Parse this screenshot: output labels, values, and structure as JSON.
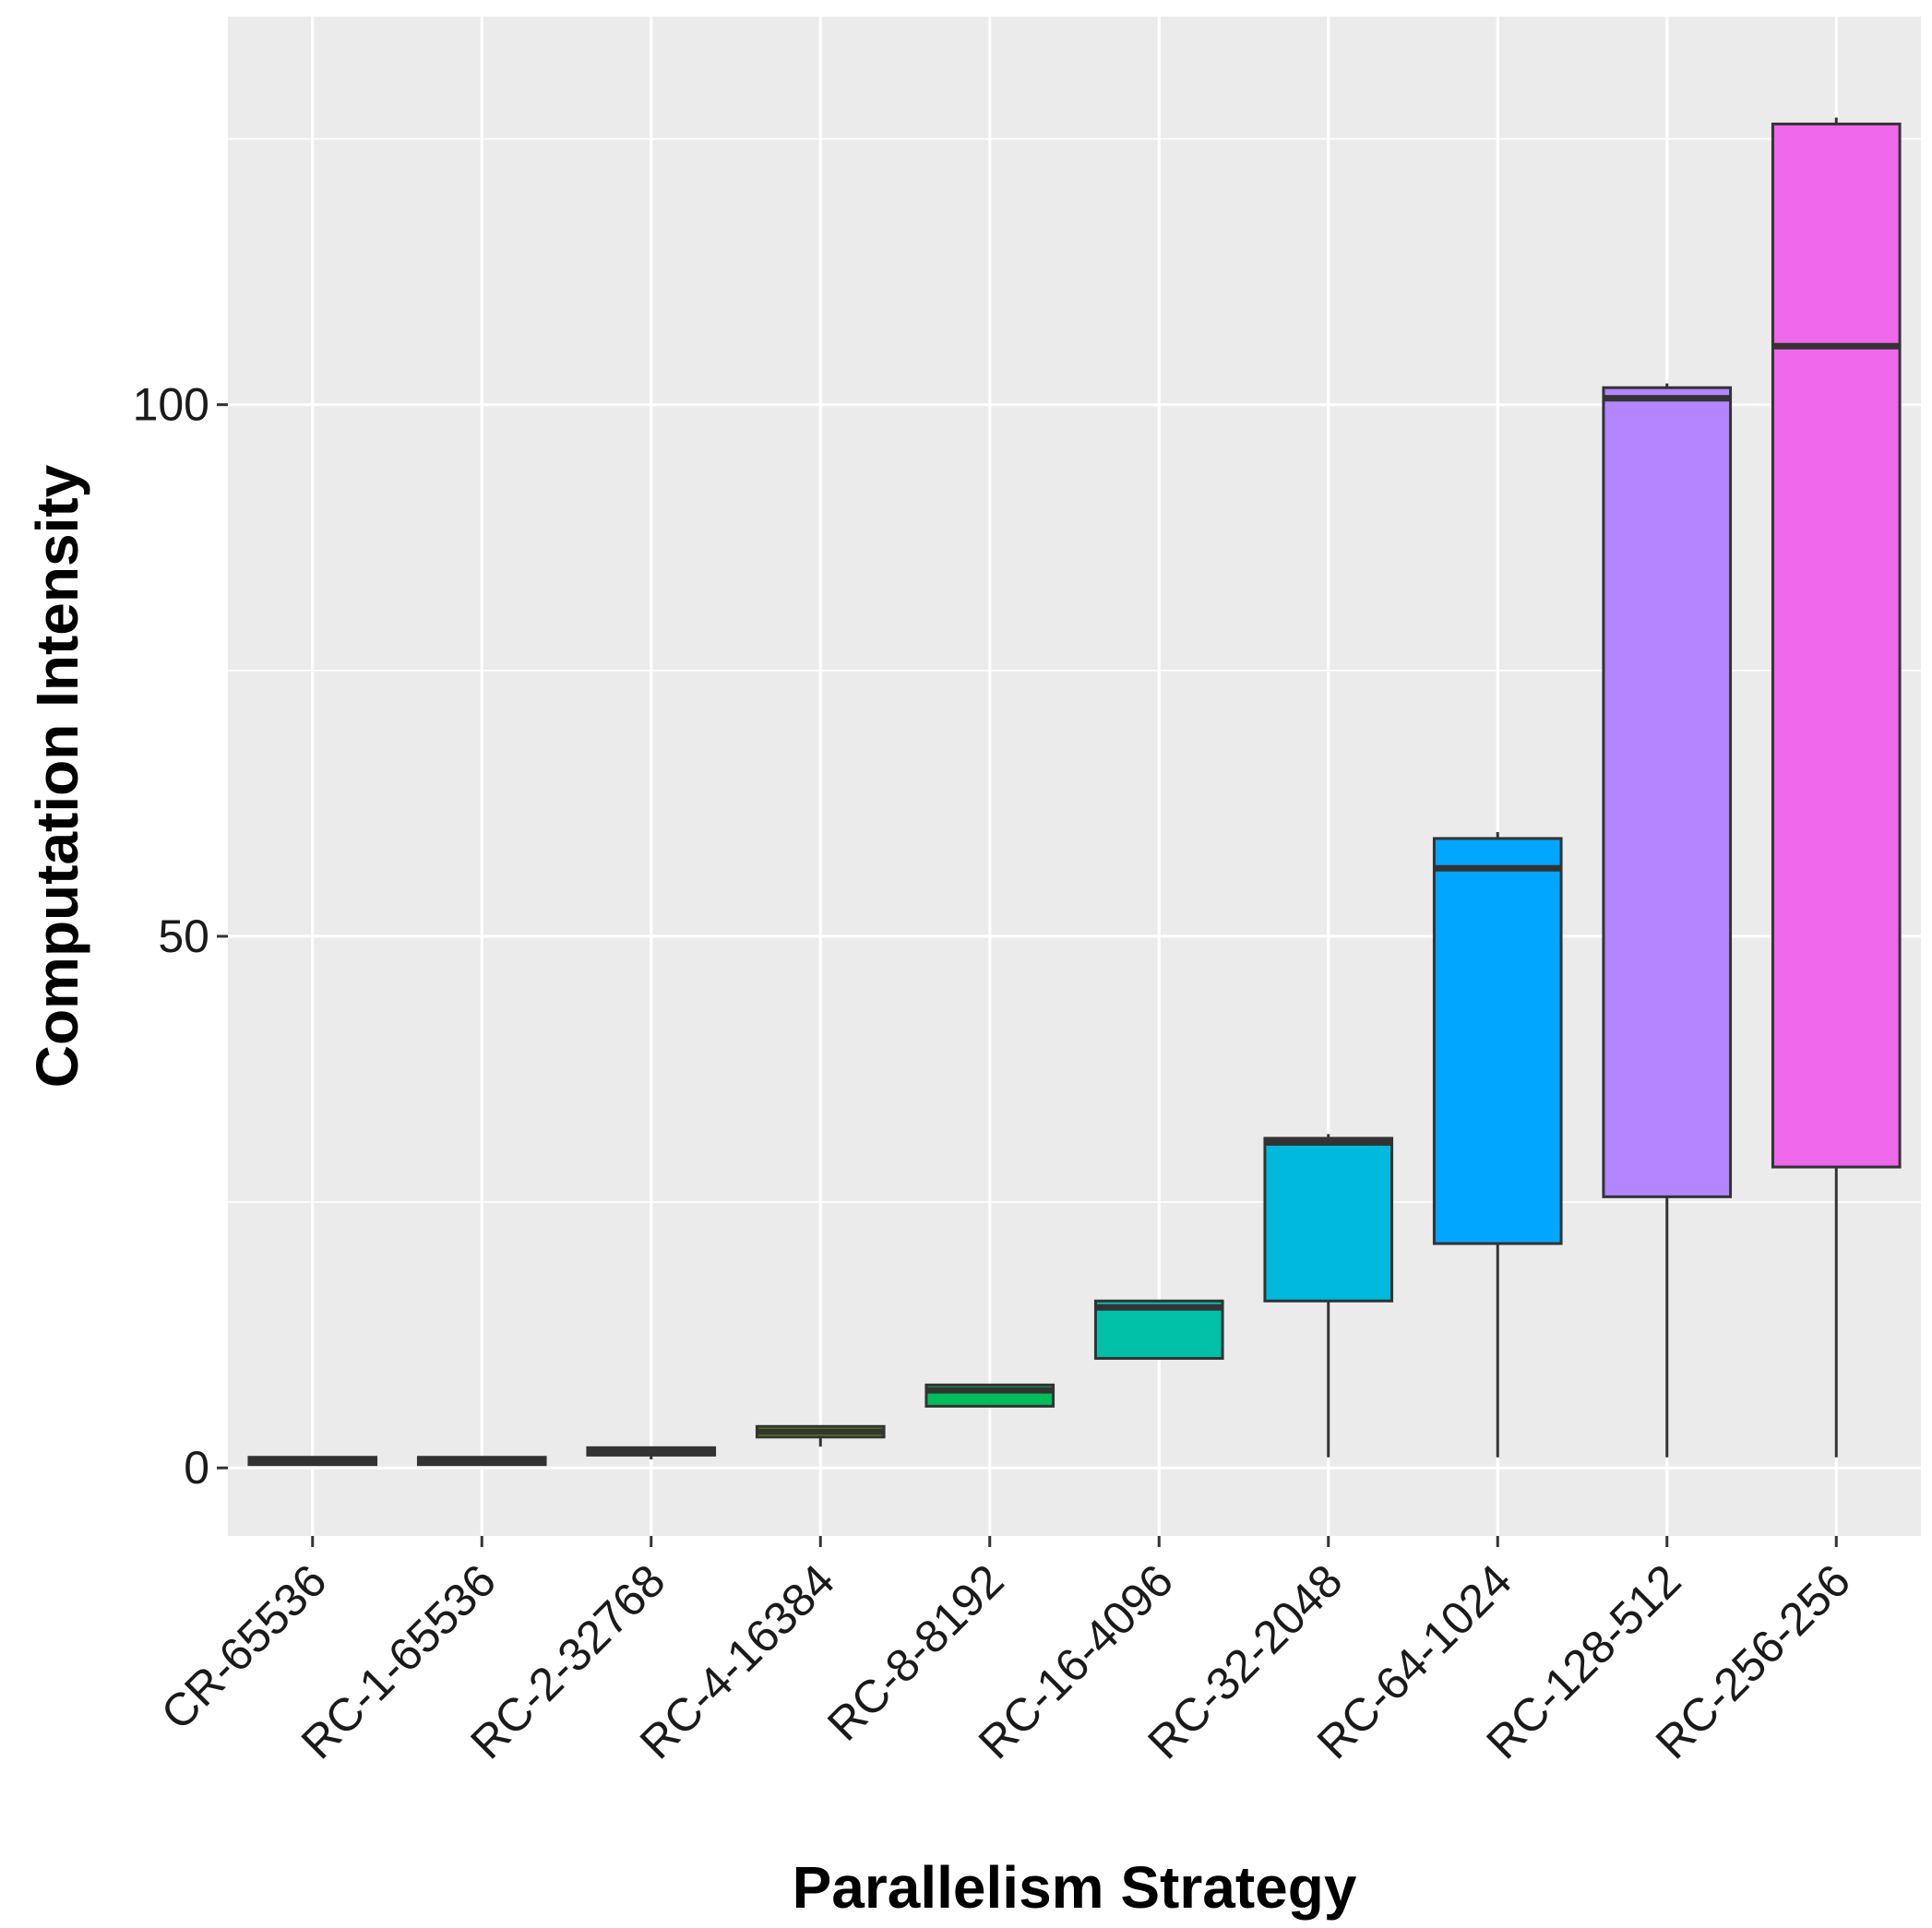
{
  "chart_data": {
    "type": "boxplot",
    "title": "",
    "xlabel": "Parallelism Strategy",
    "ylabel": "Computation Intensity",
    "ylim": [
      -6.4,
      136.5
    ],
    "y_ticks": [
      0,
      50,
      100
    ],
    "y_tick_labels": [
      "0",
      "50",
      "100"
    ],
    "grid": true,
    "legend": "none",
    "colors": {
      "panel_background": "#EBEBEB",
      "grid_line": "#FFFFFF",
      "box_outline": "#333333",
      "median_line": "#333333"
    },
    "categories": [
      "CR-65536",
      "RC-1-65536",
      "RC-2-32768",
      "RC-4-16384",
      "RC-8-8192",
      "RC-16-4096",
      "RC-32-2048",
      "RC-64-1024",
      "RC-128-512",
      "RC-256-256"
    ],
    "boxes": [
      {
        "label": "CR-65536",
        "min": 0.5,
        "q1": 0.5,
        "median": 0.7,
        "q3": 1.0,
        "max": 1.0,
        "color": "#F8766D"
      },
      {
        "label": "RC-1-65536",
        "min": 0.5,
        "q1": 0.5,
        "median": 0.7,
        "q3": 1.0,
        "max": 1.0,
        "color": "#DB8E00"
      },
      {
        "label": "RC-2-32768",
        "min": 0.8,
        "q1": 1.2,
        "median": 1.5,
        "q3": 1.9,
        "max": 2.0,
        "color": "#AEA200"
      },
      {
        "label": "RC-4-16384",
        "min": 2.0,
        "q1": 2.9,
        "median": 3.4,
        "q3": 3.9,
        "max": 4.0,
        "color": "#64B200"
      },
      {
        "label": "RC-8-8192",
        "min": 5.8,
        "q1": 5.8,
        "median": 7.3,
        "q3": 7.8,
        "max": 7.8,
        "color": "#00BD5C"
      },
      {
        "label": "RC-16-4096",
        "min": 10.3,
        "q1": 10.3,
        "median": 15.1,
        "q3": 15.7,
        "max": 15.7,
        "color": "#00C1A7"
      },
      {
        "label": "RC-32-2048",
        "min": 1.0,
        "q1": 15.7,
        "median": 30.6,
        "q3": 31.0,
        "max": 31.4,
        "color": "#00BADE"
      },
      {
        "label": "RC-64-1024",
        "min": 1.0,
        "q1": 21.1,
        "median": 56.4,
        "q3": 59.2,
        "max": 59.8,
        "color": "#00A6FF"
      },
      {
        "label": "RC-128-512",
        "min": 1.0,
        "q1": 25.5,
        "median": 100.6,
        "q3": 101.6,
        "max": 102.0,
        "color": "#B385FF"
      },
      {
        "label": "RC-256-256",
        "min": 1.0,
        "q1": 28.3,
        "median": 105.5,
        "q3": 126.4,
        "max": 127.0,
        "color": "#EF67EB"
      }
    ]
  }
}
